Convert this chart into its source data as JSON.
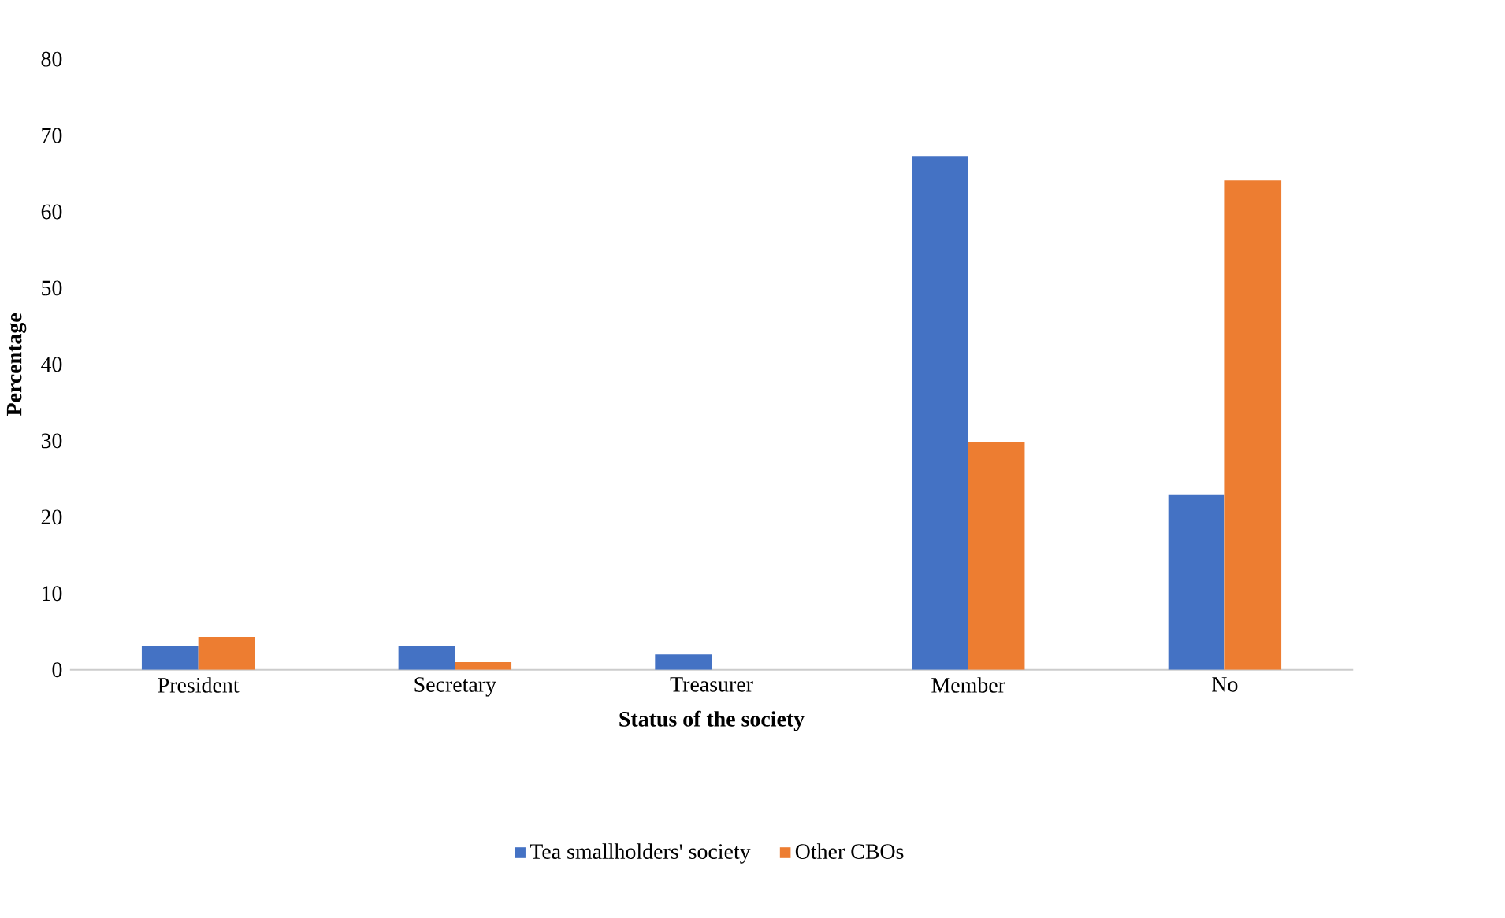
{
  "chart_data": {
    "type": "bar",
    "xlabel": "Status of the society",
    "ylabel": "Percentage",
    "categories": [
      "President",
      "Secretary",
      "Treasurer",
      "Member",
      "No"
    ],
    "series": [
      {
        "name": "Tea smallholders' society",
        "color": "#4472c4",
        "values": [
          3.1,
          3.1,
          2.0,
          67.3,
          22.9
        ]
      },
      {
        "name": "Other CBOs",
        "color": "#ed7d31",
        "values": [
          4.3,
          1.0,
          0,
          29.8,
          64.1
        ]
      }
    ],
    "ylim": [
      0,
      80
    ],
    "yticks": [
      0,
      10,
      20,
      30,
      40,
      50,
      60,
      70,
      80
    ],
    "grid": false,
    "legend": "bottom"
  }
}
